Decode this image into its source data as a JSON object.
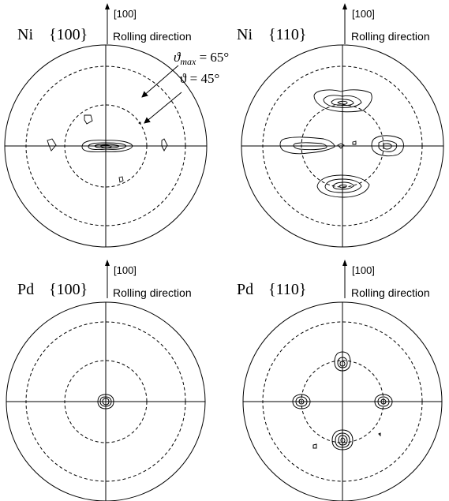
{
  "panels": [
    {
      "material": "Ni",
      "plane": "{100}",
      "direction": "[100]",
      "direction_label": "Rolling direction"
    },
    {
      "material": "Ni",
      "plane": "{110}",
      "direction": "[100]",
      "direction_label": "Rolling direction"
    },
    {
      "material": "Pd",
      "plane": "{100}",
      "direction": "[100]",
      "direction_label": "Rolling direction"
    },
    {
      "material": "Pd",
      "plane": "{110}",
      "direction": "[100]",
      "direction_label": "Rolling direction"
    }
  ],
  "annotations": {
    "theta_max_symbol": "ϑ",
    "theta_max_subscript": "max",
    "theta_max_value": " = 65°",
    "theta_value": "ϑ = 45°"
  },
  "colors": {
    "line": "#000000",
    "background": "#ffffff"
  }
}
